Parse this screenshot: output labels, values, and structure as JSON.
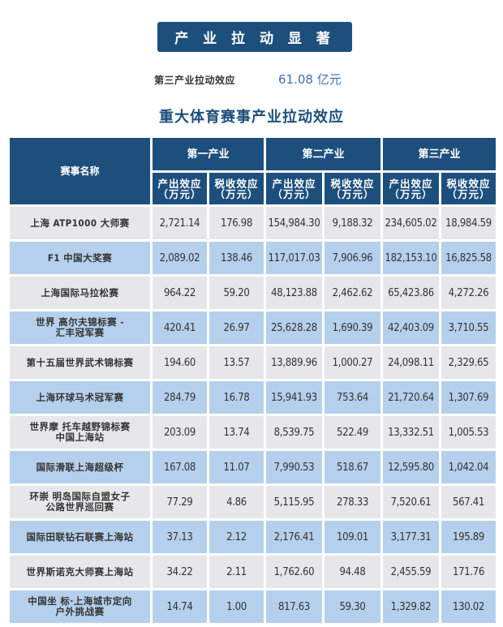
{
  "header": {
    "title": "产 业 拉 动 显 著",
    "summary_label": "第三产业拉动效应",
    "summary_value": "61.08 亿元",
    "table_title": "重大体育赛事产业拉动效应"
  },
  "table": {
    "name_header": "赛事名称",
    "groups": [
      "第一产业",
      "第二产业",
      "第三产业"
    ],
    "sub_headers": [
      [
        "产出效应",
        "（万元）"
      ],
      [
        "税收效应",
        "（万元）"
      ],
      [
        "产出效应",
        "（万元）"
      ],
      [
        "税收效应",
        "（万元）"
      ],
      [
        "产出效应",
        "（万元）"
      ],
      [
        "税收效应",
        "（万元）"
      ]
    ],
    "rows": [
      {
        "name": [
          "上海 ATP1000 大师赛"
        ],
        "values": [
          "2,721.14",
          "176.98",
          "154,984.30",
          "9,188.32",
          "234,605.02",
          "18,984.59"
        ]
      },
      {
        "name": [
          "F1 中国大奖赛"
        ],
        "values": [
          "2,089.02",
          "138.46",
          "117,017.03",
          "7,906.96",
          "182,153.10",
          "16,825.58"
        ]
      },
      {
        "name": [
          "上海国际马拉松赛"
        ],
        "values": [
          "964.22",
          "59.20",
          "48,123.88",
          "2,462.62",
          "65,423.86",
          "4,272.26"
        ]
      },
      {
        "name": [
          "世界 高尔夫锦标赛 -",
          "汇丰冠军赛"
        ],
        "values": [
          "420.41",
          "26.97",
          "25,628.28",
          "1,690.39",
          "42,403.09",
          "3,710.55"
        ]
      },
      {
        "name": [
          "第十五届世界武术锦标赛"
        ],
        "values": [
          "194.60",
          "13.57",
          "13,889.96",
          "1,000.27",
          "24,098.11",
          "2,329.65"
        ]
      },
      {
        "name": [
          "上海环球马术冠军赛"
        ],
        "values": [
          "284.79",
          "16.78",
          "15,941.93",
          "753.64",
          "21,720.64",
          "1,307.69"
        ]
      },
      {
        "name": [
          "世界摩 托车越野锦标赛",
          "中国上海站"
        ],
        "values": [
          "203.09",
          "13.74",
          "8,539.75",
          "522.49",
          "13,332.51",
          "1,005.53"
        ]
      },
      {
        "name": [
          "国际滑联上海超级杯"
        ],
        "values": [
          "167.08",
          "11.07",
          "7,990.53",
          "518.67",
          "12,595.80",
          "1,042.04"
        ]
      },
      {
        "name": [
          "环崇 明岛国际自盟女子",
          "公路世界巡回赛"
        ],
        "values": [
          "77.29",
          "4.86",
          "5,115.95",
          "278.33",
          "7,520.61",
          "567.41"
        ]
      },
      {
        "name": [
          "国际田联钻石联赛上海站"
        ],
        "values": [
          "37.13",
          "2.12",
          "2,176.41",
          "109.01",
          "3,177.31",
          "195.89"
        ]
      },
      {
        "name": [
          "世界斯诺克大师赛上海站"
        ],
        "values": [
          "34.22",
          "2.11",
          "1,762.60",
          "94.48",
          "2,455.59",
          "171.76"
        ]
      },
      {
        "name": [
          "中国坐 标·上海城市定向",
          "户外挑战赛"
        ],
        "values": [
          "14.74",
          "1.00",
          "817.63",
          "59.30",
          "1,329.82",
          "130.02"
        ]
      }
    ]
  },
  "colors": {
    "header_bg": "#1d4f7d",
    "row_odd_bg": "#e7e7e9",
    "row_even_bg": "#b5d0ec",
    "accent_value": "#3d6fb3"
  }
}
